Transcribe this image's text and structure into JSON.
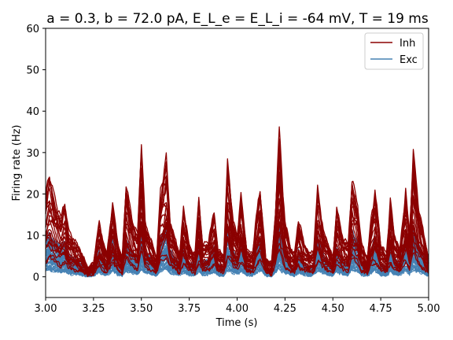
{
  "chart_data": {
    "type": "line",
    "title": "a = 0.3, b = 72.0 pA, E_L_e = E_L_i = -64 mV, T = 19 ms",
    "xlabel": "Time (s)",
    "ylabel": "Firing rate (Hz)",
    "xlim": [
      3.0,
      5.0
    ],
    "ylim": [
      -5,
      60
    ],
    "xticks": [
      "3.00",
      "3.25",
      "3.50",
      "3.75",
      "4.00",
      "4.25",
      "4.50",
      "4.75",
      "5.00"
    ],
    "yticks": [
      "0",
      "10",
      "20",
      "30",
      "40",
      "50",
      "60"
    ],
    "grid": false,
    "legend_position": "top-right",
    "series": [
      {
        "name": "Inh",
        "color": "#8b0000",
        "x": [
          3.0,
          3.02,
          3.05,
          3.08,
          3.1,
          3.12,
          3.15,
          3.18,
          3.2,
          3.22,
          3.25,
          3.28,
          3.3,
          3.32,
          3.35,
          3.38,
          3.4,
          3.42,
          3.45,
          3.48,
          3.5,
          3.52,
          3.55,
          3.58,
          3.6,
          3.63,
          3.65,
          3.68,
          3.7,
          3.72,
          3.75,
          3.78,
          3.8,
          3.82,
          3.85,
          3.88,
          3.9,
          3.93,
          3.95,
          3.98,
          4.0,
          4.02,
          4.05,
          4.08,
          4.1,
          4.12,
          4.15,
          4.18,
          4.2,
          4.22,
          4.25,
          4.28,
          4.3,
          4.32,
          4.35,
          4.38,
          4.4,
          4.42,
          4.45,
          4.48,
          4.5,
          4.52,
          4.55,
          4.58,
          4.6,
          4.63,
          4.65,
          4.68,
          4.7,
          4.72,
          4.75,
          4.78,
          4.8,
          4.82,
          4.85,
          4.88,
          4.9,
          4.92,
          4.95,
          4.98,
          5.0
        ],
        "y": [
          18,
          22,
          17,
          13,
          16,
          10,
          8,
          6,
          4,
          2,
          3,
          12,
          8,
          5,
          16,
          7,
          4,
          20,
          13,
          9,
          29,
          12,
          8,
          4,
          19,
          26,
          12,
          8,
          5,
          15,
          7,
          5,
          17,
          7,
          8,
          14,
          6,
          5,
          25,
          12,
          9,
          18,
          6,
          5,
          13,
          19,
          4,
          3,
          14,
          32,
          12,
          6,
          5,
          13,
          7,
          5,
          6,
          19,
          10,
          7,
          4,
          15,
          9,
          7,
          21,
          16,
          7,
          4,
          13,
          19,
          7,
          5,
          17,
          9,
          6,
          19,
          9,
          27,
          15,
          8,
          4
        ]
      },
      {
        "name": "Exc",
        "color": "#4682b4",
        "x": [
          3.0,
          3.02,
          3.05,
          3.08,
          3.1,
          3.12,
          3.15,
          3.18,
          3.2,
          3.22,
          3.25,
          3.28,
          3.3,
          3.32,
          3.35,
          3.38,
          3.4,
          3.42,
          3.45,
          3.48,
          3.5,
          3.52,
          3.55,
          3.58,
          3.6,
          3.63,
          3.65,
          3.68,
          3.7,
          3.72,
          3.75,
          3.78,
          3.8,
          3.82,
          3.85,
          3.88,
          3.9,
          3.93,
          3.95,
          3.98,
          4.0,
          4.02,
          4.05,
          4.08,
          4.1,
          4.12,
          4.15,
          4.18,
          4.2,
          4.22,
          4.25,
          4.28,
          4.3,
          4.32,
          4.35,
          4.38,
          4.4,
          4.42,
          4.45,
          4.48,
          4.5,
          4.52,
          4.55,
          4.58,
          4.6,
          4.63,
          4.65,
          4.68,
          4.7,
          4.72,
          4.75,
          4.78,
          4.8,
          4.82,
          4.85,
          4.88,
          4.9,
          4.92,
          4.95,
          4.98,
          5.0
        ],
        "y": [
          9,
          10,
          8,
          7,
          8,
          5,
          4,
          3,
          2,
          1,
          2,
          6,
          4,
          3,
          8,
          3,
          2,
          9,
          6,
          4,
          11,
          6,
          4,
          2,
          9,
          11,
          6,
          4,
          3,
          7,
          3,
          3,
          8,
          3,
          4,
          7,
          3,
          2,
          10,
          6,
          4,
          8,
          3,
          2,
          6,
          9,
          2,
          1,
          7,
          12,
          6,
          3,
          2,
          6,
          3,
          2,
          3,
          9,
          5,
          3,
          2,
          7,
          4,
          3,
          10,
          8,
          3,
          2,
          6,
          9,
          3,
          2,
          8,
          4,
          3,
          9,
          4,
          11,
          7,
          4,
          2
        ]
      }
    ]
  }
}
